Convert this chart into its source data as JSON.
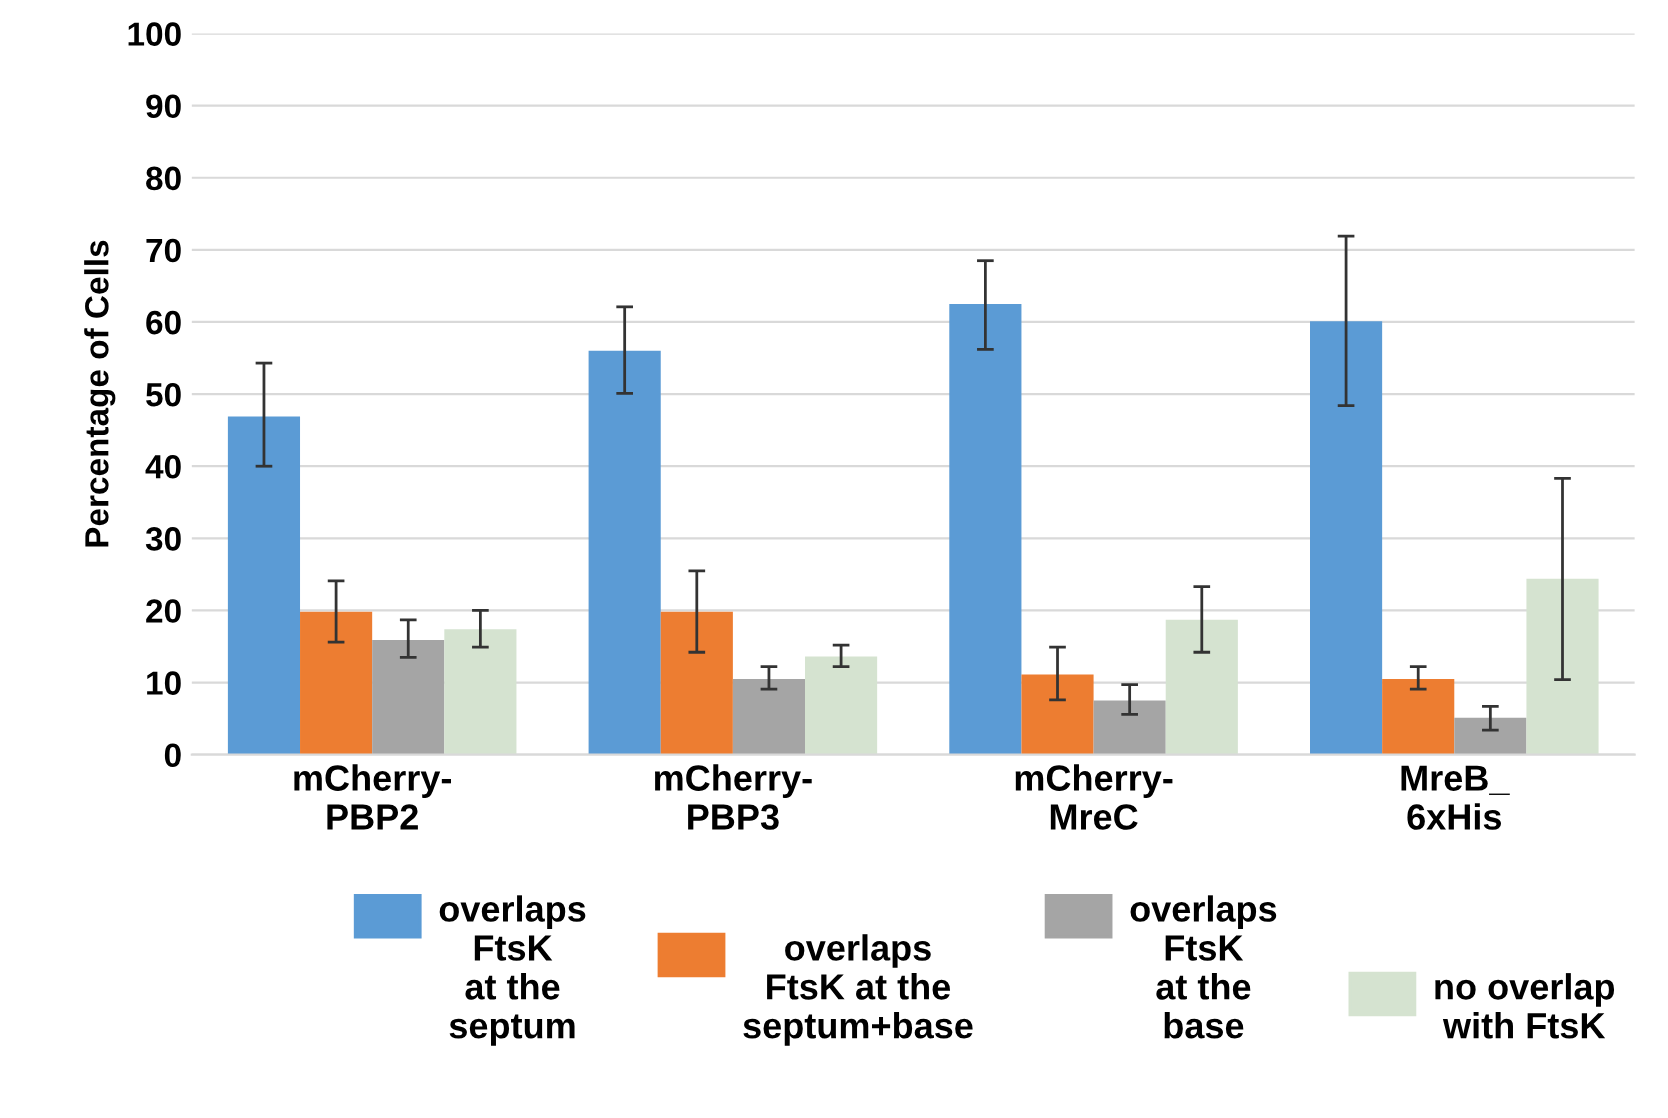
{
  "chart_data": {
    "type": "bar",
    "ylabel": "Percentage of Cells",
    "categories": [
      "mCherry-\nPBP2",
      "mCherry-\nPBP3",
      "mCherry-\nMreC",
      "MreB_\n6xHis"
    ],
    "series": [
      {
        "name": "overlaps\nFtsK\nat the\nseptum",
        "color": "#5b9bd5",
        "values": [
          46.9,
          56.0,
          62.5,
          60.1
        ],
        "errors": [
          [
            40.0,
            54.3
          ],
          [
            50.1,
            62.1
          ],
          [
            56.2,
            68.5
          ],
          [
            48.4,
            71.9
          ]
        ]
      },
      {
        "name": "overlaps\nFtsK at the\nseptum+base",
        "color": "#ed7d31",
        "values": [
          19.8,
          19.8,
          11.1,
          10.5
        ],
        "errors": [
          [
            15.6,
            24.1
          ],
          [
            14.2,
            25.5
          ],
          [
            7.6,
            14.9
          ],
          [
            9.1,
            12.2
          ]
        ]
      },
      {
        "name": "overlaps\nFtsK\nat the\nbase",
        "color": "#a5a5a5",
        "values": [
          15.9,
          10.5,
          7.5,
          5.1
        ],
        "errors": [
          [
            13.5,
            18.7
          ],
          [
            9.1,
            12.2
          ],
          [
            5.6,
            9.7
          ],
          [
            3.4,
            6.7
          ]
        ]
      },
      {
        "name": "no overlap\nwith FtsK",
        "color": "#d5e3d0",
        "values": [
          17.4,
          13.6,
          18.7,
          24.4
        ],
        "errors": [
          [
            14.9,
            20.0
          ],
          [
            12.2,
            15.2
          ],
          [
            14.2,
            23.3
          ],
          [
            10.4,
            38.3
          ]
        ]
      }
    ],
    "ylim": [
      0,
      100
    ],
    "yticks": [
      0,
      10,
      20,
      30,
      40,
      50,
      60,
      70,
      80,
      90,
      100
    ],
    "grid": "y",
    "legend": "bottom"
  }
}
